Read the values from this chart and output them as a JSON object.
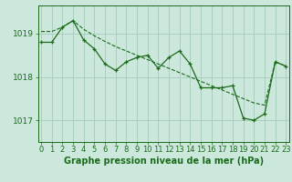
{
  "title": "Graphe pression niveau de la mer (hPa)",
  "x": [
    0,
    1,
    2,
    3,
    4,
    5,
    6,
    7,
    8,
    9,
    10,
    11,
    12,
    13,
    14,
    15,
    16,
    17,
    18,
    19,
    20,
    21,
    22,
    23
  ],
  "main_line": [
    1018.8,
    1018.8,
    1019.15,
    1019.3,
    1018.85,
    1018.65,
    1018.3,
    1018.15,
    1018.35,
    1018.45,
    1018.5,
    1018.2,
    1018.45,
    1018.6,
    1018.3,
    1017.75,
    1017.75,
    1017.75,
    1017.8,
    1017.05,
    1017.0,
    1017.15,
    1018.35,
    1018.25
  ],
  "smooth_line": [
    1019.05,
    1019.05,
    1019.15,
    1019.3,
    1019.1,
    1018.95,
    1018.82,
    1018.7,
    1018.6,
    1018.5,
    1018.4,
    1018.3,
    1018.2,
    1018.1,
    1018.0,
    1017.9,
    1017.8,
    1017.7,
    1017.6,
    1017.5,
    1017.4,
    1017.35,
    1018.35,
    1018.25
  ],
  "bg_color": "#cce8dc",
  "grid_color": "#aacfbe",
  "line_color": "#1a6b1a",
  "ylim": [
    1016.5,
    1019.65
  ],
  "yticks": [
    1017,
    1018,
    1019
  ],
  "tick_fontsize": 6.5,
  "label_fontsize": 7.0
}
